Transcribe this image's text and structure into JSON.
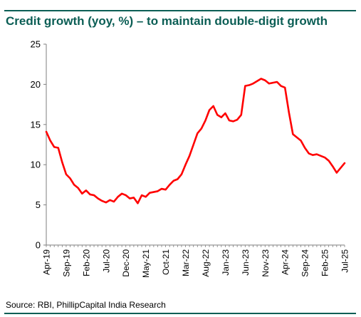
{
  "title": "Credit growth (yoy, %) – to maintain double-digit growth",
  "source": "Source: RBI, PhillipCapital India Research",
  "colors": {
    "accent": "#0b5e55",
    "line": "#ff0000",
    "axis": "#7f7f7f"
  },
  "chart_data": {
    "type": "line",
    "title": "Credit growth (yoy, %) – to maintain double-digit growth",
    "xlabel": "",
    "ylabel": "",
    "ylim": [
      0,
      25
    ],
    "yticks": [
      0,
      5,
      10,
      15,
      20,
      25
    ],
    "xlim": [
      "2019-04",
      "2025-07"
    ],
    "xtick_labels": [
      "Apr-19",
      "Sep-19",
      "Feb-20",
      "Jul-20",
      "Dec-20",
      "May-21",
      "Oct-21",
      "Mar-22",
      "Aug-22",
      "Jan-23",
      "Jun-23",
      "Nov-23",
      "Apr-24",
      "Sep-24",
      "Feb-25",
      "Jul-25"
    ],
    "grid": false,
    "legend": "none",
    "series": [
      {
        "color": "#ff0000",
        "x": [
          "2019-04",
          "2019-05",
          "2019-06",
          "2019-07",
          "2019-08",
          "2019-09",
          "2019-10",
          "2019-11",
          "2019-12",
          "2020-01",
          "2020-02",
          "2020-03",
          "2020-04",
          "2020-05",
          "2020-06",
          "2020-07",
          "2020-08",
          "2020-09",
          "2020-10",
          "2020-11",
          "2020-12",
          "2021-01",
          "2021-02",
          "2021-03",
          "2021-04",
          "2021-05",
          "2021-06",
          "2021-07",
          "2021-08",
          "2021-09",
          "2021-10",
          "2021-11",
          "2021-12",
          "2022-01",
          "2022-02",
          "2022-03",
          "2022-04",
          "2022-05",
          "2022-06",
          "2022-07",
          "2022-08",
          "2022-09",
          "2022-10",
          "2022-11",
          "2022-12",
          "2023-01",
          "2023-02",
          "2023-03",
          "2023-04",
          "2023-05",
          "2023-06",
          "2023-07",
          "2023-08",
          "2023-09",
          "2023-10",
          "2023-11",
          "2023-12",
          "2024-01",
          "2024-02",
          "2024-03",
          "2024-04",
          "2024-05",
          "2024-06",
          "2024-07",
          "2024-08",
          "2024-09",
          "2024-10",
          "2024-11",
          "2024-12",
          "2025-01",
          "2025-02",
          "2025-03",
          "2025-04",
          "2025-05",
          "2025-06",
          "2025-07"
        ],
        "values": [
          14.1,
          13.0,
          12.2,
          12.1,
          10.3,
          8.8,
          8.3,
          7.5,
          7.1,
          6.4,
          6.8,
          6.3,
          6.2,
          5.8,
          5.5,
          5.3,
          5.6,
          5.4,
          6.0,
          6.4,
          6.2,
          5.8,
          5.9,
          5.2,
          6.2,
          6.0,
          6.5,
          6.6,
          6.7,
          7.0,
          6.9,
          7.5,
          8.0,
          8.2,
          8.8,
          10.0,
          11.1,
          12.5,
          13.9,
          14.5,
          15.5,
          16.8,
          17.3,
          16.2,
          15.9,
          16.4,
          15.5,
          15.4,
          15.6,
          16.2,
          19.8,
          19.9,
          20.1,
          20.4,
          20.7,
          20.5,
          20.1,
          20.2,
          20.3,
          19.8,
          19.6,
          16.5,
          13.8,
          13.4,
          13.0,
          12.1,
          11.4,
          11.2,
          11.3,
          11.1,
          10.9,
          10.5,
          9.8,
          9.0,
          9.6,
          10.2
        ]
      }
    ]
  }
}
